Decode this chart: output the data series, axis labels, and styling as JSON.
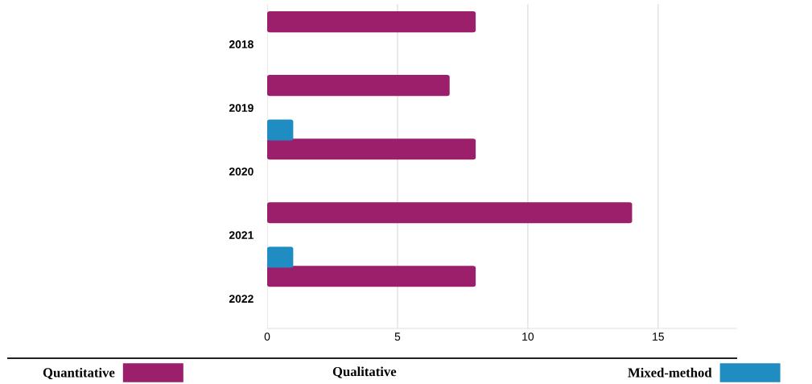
{
  "chart_data": {
    "type": "bar",
    "orientation": "horizontal",
    "categories": [
      "2018",
      "2019",
      "2020",
      "2021",
      "2022"
    ],
    "series": [
      {
        "name": "Quantitative",
        "color": "#9b1f6a",
        "values": [
          8,
          7,
          8,
          14,
          8
        ]
      },
      {
        "name": "Mixed-method",
        "color": "#1f8dc2",
        "values": [
          null,
          1,
          null,
          1,
          null
        ]
      }
    ],
    "annotations": [
      "Qualitative"
    ],
    "xlim": [
      0,
      18
    ],
    "xticks": [
      0,
      5,
      10,
      15
    ],
    "grid": "x",
    "legend": "bottom"
  }
}
